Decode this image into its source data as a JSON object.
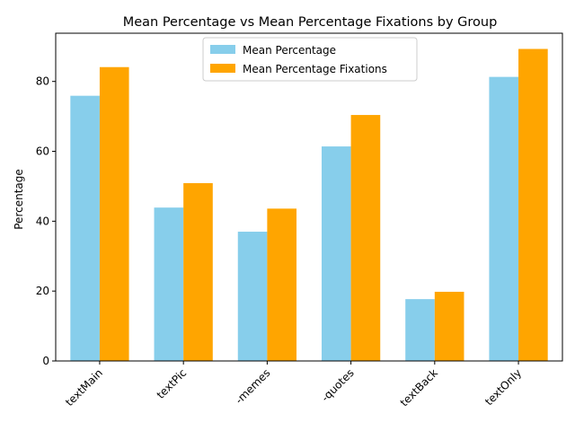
{
  "chart_data": {
    "type": "bar",
    "title": "Mean Percentage vs Mean Percentage Fixations by Group",
    "xlabel": "",
    "ylabel": "Percentage",
    "categories": [
      "textMain",
      "textPic",
      "-memes",
      "-quotes",
      "textBack",
      "textOnly"
    ],
    "series": [
      {
        "name": "Mean Percentage",
        "color": "#87ceeb",
        "values": [
          75.9,
          43.9,
          37.0,
          61.4,
          17.7,
          81.3
        ]
      },
      {
        "name": "Mean Percentage Fixations",
        "color": "#ffa500",
        "values": [
          84.1,
          50.9,
          43.6,
          70.4,
          19.8,
          89.3
        ]
      }
    ],
    "ylim": [
      0,
      93.8
    ],
    "yticks": [
      0,
      20,
      40,
      60,
      80
    ],
    "legend": "top-center",
    "grid": false
  }
}
